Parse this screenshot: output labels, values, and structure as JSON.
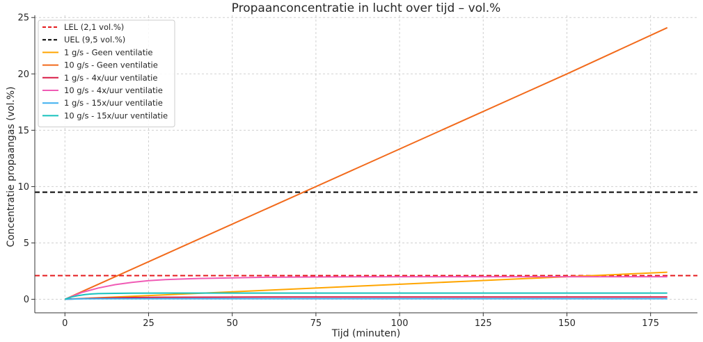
{
  "chart_data": {
    "type": "line",
    "title": "Propaanconcentratie in lucht over tijd – vol.%",
    "xlabel": "Tijd (minuten)",
    "ylabel": "Concentratie propaangas (vol.%)",
    "xlim": [
      -9,
      189
    ],
    "ylim": [
      -1.2,
      25.2
    ],
    "xticks": [
      0,
      25,
      50,
      75,
      100,
      125,
      150,
      175
    ],
    "yticks": [
      0,
      5,
      10,
      15,
      20,
      25
    ],
    "xtick_labels": [
      "0",
      "25",
      "50",
      "75",
      "100",
      "125",
      "150",
      "175"
    ],
    "ytick_labels": [
      "0",
      "5",
      "10",
      "15",
      "20",
      "25"
    ],
    "grid": true,
    "legend_position": "upper-left",
    "reference_lines": [
      {
        "name": "LEL (2,1 vol.%)",
        "y": 2.1,
        "color": "#e41a1c",
        "style": "dashed"
      },
      {
        "name": "UEL (9,5 vol.%)",
        "y": 9.5,
        "color": "#000000",
        "style": "dashed"
      }
    ],
    "series": [
      {
        "name": "1 g/s - Geen ventilatie",
        "color": "#ffa500",
        "x": [
          0,
          30,
          60,
          90,
          120,
          150,
          180
        ],
        "y": [
          0,
          0.4,
          0.8,
          1.2,
          1.6,
          2.0,
          2.4
        ]
      },
      {
        "name": "10 g/s - Geen ventilatie",
        "color": "#f26a1b",
        "x": [
          0,
          30,
          60,
          90,
          120,
          150,
          180
        ],
        "y": [
          0,
          4.0,
          8.0,
          12.0,
          16.0,
          20.0,
          24.1
        ]
      },
      {
        "name": "1 g/s - 4x/uur ventilatie",
        "color": "#d81b45",
        "x": [
          0,
          5,
          10,
          20,
          30,
          45,
          60,
          90,
          120,
          180
        ],
        "y": [
          0,
          0.06,
          0.1,
          0.16,
          0.18,
          0.19,
          0.2,
          0.2,
          0.2,
          0.2
        ]
      },
      {
        "name": "10 g/s - 4x/uur ventilatie",
        "color": "#f05bb5",
        "x": [
          0,
          5,
          10,
          15,
          20,
          25,
          30,
          40,
          50,
          60,
          80,
          100,
          120,
          150,
          180
        ],
        "y": [
          0,
          0.6,
          1.0,
          1.3,
          1.5,
          1.65,
          1.75,
          1.85,
          1.9,
          1.95,
          1.98,
          2.0,
          2.0,
          2.0,
          2.0
        ]
      },
      {
        "name": "1 g/s - 15x/uur ventilatie",
        "color": "#3fb0f0",
        "x": [
          0,
          5,
          10,
          20,
          30,
          60,
          120,
          180
        ],
        "y": [
          0,
          0.04,
          0.05,
          0.055,
          0.055,
          0.055,
          0.055,
          0.055
        ]
      },
      {
        "name": "10 g/s - 15x/uur ventilatie",
        "color": "#17c2bd",
        "x": [
          0,
          2,
          4,
          6,
          8,
          10,
          15,
          20,
          30,
          60,
          120,
          180
        ],
        "y": [
          0,
          0.2,
          0.33,
          0.42,
          0.47,
          0.5,
          0.53,
          0.54,
          0.55,
          0.55,
          0.55,
          0.55
        ]
      }
    ]
  }
}
